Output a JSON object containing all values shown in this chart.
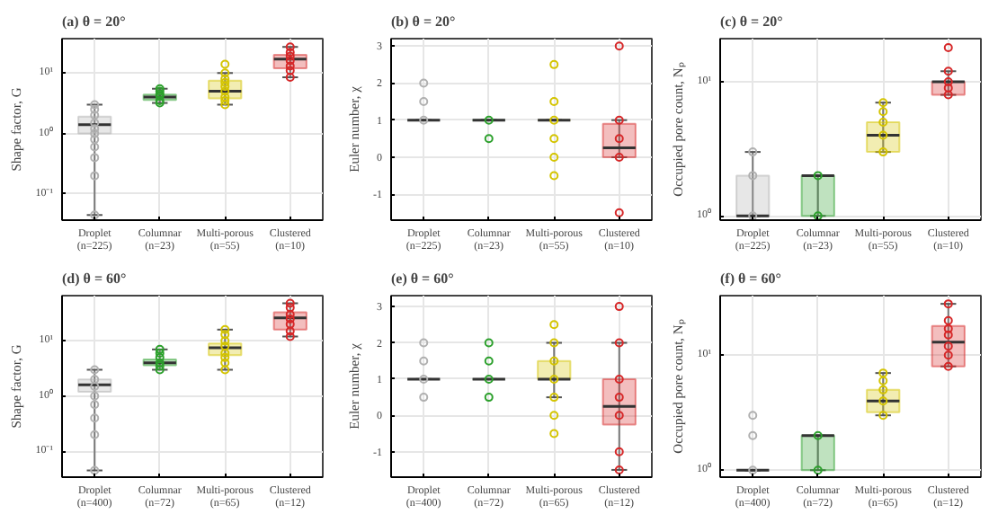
{
  "chart_data": [
    {
      "type": "box",
      "title": "(a) θ = 20°",
      "ylabel": "Shape factor, G",
      "log": true,
      "grid": true,
      "ylim": [
        0.037,
        37
      ],
      "yticks": [
        {
          "value": 0.1,
          "label": "10⁻¹"
        },
        {
          "value": 1,
          "label": "10⁰"
        },
        {
          "value": 10,
          "label": "10¹"
        }
      ],
      "categories": [
        "Droplet\n(n=225)",
        "Columnar\n(n=23)",
        "Multi-porous\n(n=55)",
        "Clustered\n(n=10)"
      ],
      "colors": [
        "#b0b0b0",
        "#2ca02c",
        "#d4c400",
        "#d62728"
      ],
      "boxes": [
        {
          "low": 0.045,
          "q1": 1.0,
          "median": 1.4,
          "q3": 1.9,
          "high": 3.0
        },
        {
          "low": 3.2,
          "q1": 3.6,
          "median": 4.0,
          "q3": 4.4,
          "high": 5.5
        },
        {
          "low": 3.0,
          "q1": 3.8,
          "median": 5.0,
          "q3": 7.5,
          "high": 10
        },
        {
          "low": 8.5,
          "q1": 12,
          "median": 17,
          "q3": 20,
          "high": 27
        }
      ],
      "series": [
        {
          "type": "scatter",
          "color": "#b0b0b0",
          "x": [
            "Droplet\n(n=225)",
            "Droplet\n(n=225)",
            "Droplet\n(n=225)",
            "Droplet\n(n=225)",
            "Droplet\n(n=225)",
            "Droplet\n(n=225)",
            "Droplet\n(n=225)",
            "Droplet\n(n=225)",
            "Droplet\n(n=225)",
            "Droplet\n(n=225)",
            "Droplet\n(n=225)"
          ],
          "values": [
            0.045,
            0.2,
            0.4,
            0.6,
            0.8,
            1.0,
            1.2,
            1.5,
            2.0,
            2.5,
            3.0
          ]
        },
        {
          "type": "scatter",
          "color": "#2ca02c",
          "x": [
            "Columnar\n(n=23)",
            "Columnar\n(n=23)",
            "Columnar\n(n=23)",
            "Columnar\n(n=23)",
            "Columnar\n(n=23)",
            "Columnar\n(n=23)"
          ],
          "values": [
            3.2,
            3.5,
            4.2,
            4.5,
            5.0,
            5.5
          ]
        },
        {
          "type": "scatter",
          "color": "#d4c400",
          "x": [
            "Multi-porous\n(n=55)",
            "Multi-porous\n(n=55)",
            "Multi-porous\n(n=55)",
            "Multi-porous\n(n=55)",
            "Multi-porous\n(n=55)",
            "Multi-porous\n(n=55)",
            "Multi-porous\n(n=55)",
            "Multi-porous\n(n=55)",
            "Multi-porous\n(n=55)"
          ],
          "values": [
            3.0,
            3.5,
            4.0,
            5.0,
            6.0,
            7.0,
            8.0,
            10,
            14
          ]
        },
        {
          "type": "scatter",
          "color": "#d62728",
          "x": [
            "Clustered\n(n=10)",
            "Clustered\n(n=10)",
            "Clustered\n(n=10)",
            "Clustered\n(n=10)",
            "Clustered\n(n=10)",
            "Clustered\n(n=10)",
            "Clustered\n(n=10)"
          ],
          "values": [
            8.5,
            11,
            13,
            16,
            19,
            22,
            27
          ]
        }
      ]
    },
    {
      "type": "box",
      "title": "(b) θ = 20°",
      "ylabel": "Euler number, χ",
      "grid": true,
      "ylim": [
        -1.7,
        3.2
      ],
      "yticks": [
        -1,
        0,
        1,
        2,
        3
      ],
      "categories": [
        "Droplet\n(n=225)",
        "Columnar\n(n=23)",
        "Multi-porous\n(n=55)",
        "Clustered\n(n=10)"
      ],
      "colors": [
        "#b0b0b0",
        "#2ca02c",
        "#d4c400",
        "#d62728"
      ],
      "boxes": [
        {
          "low": 1,
          "q1": 1,
          "median": 1,
          "q3": 1,
          "high": 1
        },
        {
          "low": 1,
          "q1": 1,
          "median": 1,
          "q3": 1,
          "high": 1
        },
        {
          "low": 1,
          "q1": 1,
          "median": 1,
          "q3": 1,
          "high": 1
        },
        {
          "low": 0,
          "q1": 0,
          "median": 0.25,
          "q3": 0.9,
          "high": 1
        }
      ],
      "series": [
        {
          "type": "scatter",
          "color": "#b0b0b0",
          "x": [
            "Droplet\n(n=225)",
            "Droplet\n(n=225)",
            "Droplet\n(n=225)"
          ],
          "values": [
            1,
            1.5,
            2
          ]
        },
        {
          "type": "scatter",
          "color": "#2ca02c",
          "x": [
            "Columnar\n(n=23)",
            "Columnar\n(n=23)"
          ],
          "values": [
            0.5,
            1
          ]
        },
        {
          "type": "scatter",
          "color": "#d4c400",
          "x": [
            "Multi-porous\n(n=55)",
            "Multi-porous\n(n=55)",
            "Multi-porous\n(n=55)",
            "Multi-porous\n(n=55)",
            "Multi-porous\n(n=55)",
            "Multi-porous\n(n=55)"
          ],
          "values": [
            -0.5,
            0,
            0.5,
            1,
            1.5,
            2.5
          ]
        },
        {
          "type": "scatter",
          "color": "#d62728",
          "x": [
            "Clustered\n(n=10)",
            "Clustered\n(n=10)",
            "Clustered\n(n=10)",
            "Clustered\n(n=10)",
            "Clustered\n(n=10)"
          ],
          "values": [
            -1.5,
            0,
            0.5,
            1,
            3
          ]
        }
      ]
    },
    {
      "type": "box",
      "title": "(c) θ = 20°",
      "ylabel": "Occupied pore count, Nₚ",
      "log": true,
      "grid": true,
      "ylim": [
        0.93,
        21
      ],
      "yticks": [
        {
          "value": 1,
          "label": "10⁰"
        },
        {
          "value": 10,
          "label": "10¹"
        }
      ],
      "categories": [
        "Droplet\n(n=225)",
        "Columnar\n(n=23)",
        "Multi-porous\n(n=55)",
        "Clustered\n(n=10)"
      ],
      "colors": [
        "#b0b0b0",
        "#2ca02c",
        "#d4c400",
        "#d62728"
      ],
      "boxes": [
        {
          "low": 1,
          "q1": 1,
          "median": 1,
          "q3": 2,
          "high": 3
        },
        {
          "low": 1,
          "q1": 1,
          "median": 2,
          "q3": 2,
          "high": 2
        },
        {
          "low": 3,
          "q1": 3,
          "median": 4,
          "q3": 5,
          "high": 7
        },
        {
          "low": 8,
          "q1": 8,
          "median": 10,
          "q3": 10,
          "high": 12
        }
      ],
      "series": [
        {
          "type": "scatter",
          "color": "#b0b0b0",
          "x": [
            "Droplet\n(n=225)",
            "Droplet\n(n=225)",
            "Droplet\n(n=225)"
          ],
          "values": [
            1,
            2,
            3
          ]
        },
        {
          "type": "scatter",
          "color": "#2ca02c",
          "x": [
            "Columnar\n(n=23)",
            "Columnar\n(n=23)"
          ],
          "values": [
            1,
            2
          ]
        },
        {
          "type": "scatter",
          "color": "#d4c400",
          "x": [
            "Multi-porous\n(n=55)",
            "Multi-porous\n(n=55)",
            "Multi-porous\n(n=55)",
            "Multi-porous\n(n=55)",
            "Multi-porous\n(n=55)"
          ],
          "values": [
            3,
            4,
            5,
            6,
            7
          ]
        },
        {
          "type": "scatter",
          "color": "#d62728",
          "x": [
            "Clustered\n(n=10)",
            "Clustered\n(n=10)",
            "Clustered\n(n=10)",
            "Clustered\n(n=10)",
            "Clustered\n(n=10)"
          ],
          "values": [
            8,
            9,
            10,
            12,
            18
          ]
        }
      ]
    },
    {
      "type": "box",
      "title": "(d) θ = 60°",
      "ylabel": "Shape factor, G",
      "log": true,
      "grid": true,
      "ylim": [
        0.034,
        66
      ],
      "yticks": [
        {
          "value": 0.1,
          "label": "10⁻¹"
        },
        {
          "value": 1,
          "label": "10⁰"
        },
        {
          "value": 10,
          "label": "10¹"
        }
      ],
      "categories": [
        "Droplet\n(n=400)",
        "Columnar\n(n=72)",
        "Multi-porous\n(n=65)",
        "Clustered\n(n=12)"
      ],
      "colors": [
        "#b0b0b0",
        "#2ca02c",
        "#d4c400",
        "#d62728"
      ],
      "boxes": [
        {
          "low": 0.045,
          "q1": 1.2,
          "median": 1.6,
          "q3": 2.0,
          "high": 3.0
        },
        {
          "low": 3.0,
          "q1": 3.6,
          "median": 4.0,
          "q3": 4.6,
          "high": 7.0
        },
        {
          "low": 3.0,
          "q1": 5.5,
          "median": 7.5,
          "q3": 9.0,
          "high": 16
        },
        {
          "low": 12,
          "q1": 16,
          "median": 26,
          "q3": 33,
          "high": 48
        }
      ],
      "series": [
        {
          "type": "scatter",
          "color": "#b0b0b0",
          "x": [
            "Droplet\n(n=400)",
            "Droplet\n(n=400)",
            "Droplet\n(n=400)",
            "Droplet\n(n=400)",
            "Droplet\n(n=400)",
            "Droplet\n(n=400)",
            "Droplet\n(n=400)",
            "Droplet\n(n=400)"
          ],
          "values": [
            0.045,
            0.2,
            0.4,
            0.7,
            1.0,
            1.5,
            2.0,
            3.0
          ]
        },
        {
          "type": "scatter",
          "color": "#2ca02c",
          "x": [
            "Columnar\n(n=72)",
            "Columnar\n(n=72)",
            "Columnar\n(n=72)",
            "Columnar\n(n=72)",
            "Columnar\n(n=72)",
            "Columnar\n(n=72)"
          ],
          "values": [
            3.0,
            3.5,
            4.0,
            5.0,
            6.0,
            7.0
          ]
        },
        {
          "type": "scatter",
          "color": "#d4c400",
          "x": [
            "Multi-porous\n(n=65)",
            "Multi-porous\n(n=65)",
            "Multi-porous\n(n=65)",
            "Multi-porous\n(n=65)",
            "Multi-porous\n(n=65)",
            "Multi-porous\n(n=65)",
            "Multi-porous\n(n=65)",
            "Multi-porous\n(n=65)"
          ],
          "values": [
            3.0,
            4.0,
            5.0,
            6.0,
            8.0,
            10,
            13,
            16
          ]
        },
        {
          "type": "scatter",
          "color": "#d62728",
          "x": [
            "Clustered\n(n=12)",
            "Clustered\n(n=12)",
            "Clustered\n(n=12)",
            "Clustered\n(n=12)",
            "Clustered\n(n=12)",
            "Clustered\n(n=12)",
            "Clustered\n(n=12)"
          ],
          "values": [
            12,
            15,
            20,
            25,
            30,
            40,
            48
          ]
        }
      ]
    },
    {
      "type": "box",
      "title": "(e) θ = 60°",
      "ylabel": "Euler number, χ",
      "grid": true,
      "ylim": [
        -1.7,
        3.3
      ],
      "yticks": [
        -1,
        0,
        1,
        2,
        3
      ],
      "categories": [
        "Droplet\n(n=400)",
        "Columnar\n(n=72)",
        "Multi-porous\n(n=65)",
        "Clustered\n(n=12)"
      ],
      "colors": [
        "#b0b0b0",
        "#2ca02c",
        "#d4c400",
        "#d62728"
      ],
      "boxes": [
        {
          "low": 1,
          "q1": 1,
          "median": 1,
          "q3": 1,
          "high": 1
        },
        {
          "low": 1,
          "q1": 1,
          "median": 1,
          "q3": 1,
          "high": 1
        },
        {
          "low": 0.5,
          "q1": 1,
          "median": 1,
          "q3": 1.5,
          "high": 2
        },
        {
          "low": -1.5,
          "q1": -0.25,
          "median": 0.25,
          "q3": 1.0,
          "high": 2
        }
      ],
      "series": [
        {
          "type": "scatter",
          "color": "#b0b0b0",
          "x": [
            "Droplet\n(n=400)",
            "Droplet\n(n=400)",
            "Droplet\n(n=400)",
            "Droplet\n(n=400)"
          ],
          "values": [
            0.5,
            1,
            1.5,
            2
          ]
        },
        {
          "type": "scatter",
          "color": "#2ca02c",
          "x": [
            "Columnar\n(n=72)",
            "Columnar\n(n=72)",
            "Columnar\n(n=72)",
            "Columnar\n(n=72)"
          ],
          "values": [
            0.5,
            1,
            1.5,
            2
          ]
        },
        {
          "type": "scatter",
          "color": "#d4c400",
          "x": [
            "Multi-porous\n(n=65)",
            "Multi-porous\n(n=65)",
            "Multi-porous\n(n=65)",
            "Multi-porous\n(n=65)",
            "Multi-porous\n(n=65)",
            "Multi-porous\n(n=65)",
            "Multi-porous\n(n=65)"
          ],
          "values": [
            -0.5,
            0,
            0.5,
            1,
            1.5,
            2,
            2.5
          ]
        },
        {
          "type": "scatter",
          "color": "#d62728",
          "x": [
            "Clustered\n(n=12)",
            "Clustered\n(n=12)",
            "Clustered\n(n=12)",
            "Clustered\n(n=12)",
            "Clustered\n(n=12)",
            "Clustered\n(n=12)",
            "Clustered\n(n=12)"
          ],
          "values": [
            -1.5,
            -1,
            0,
            0.5,
            1,
            2,
            3
          ]
        }
      ]
    },
    {
      "type": "box",
      "title": "(f) θ = 60°",
      "ylabel": "Occupied pore count, Nₚ",
      "log": true,
      "grid": true,
      "ylim": [
        0.87,
        33
      ],
      "yticks": [
        {
          "value": 1,
          "label": "10⁰"
        },
        {
          "value": 10,
          "label": "10¹"
        }
      ],
      "categories": [
        "Droplet\n(n=400)",
        "Columnar\n(n=72)",
        "Multi-porous\n(n=65)",
        "Clustered\n(n=12)"
      ],
      "colors": [
        "#b0b0b0",
        "#2ca02c",
        "#d4c400",
        "#d62728"
      ],
      "boxes": [
        {
          "low": 1,
          "q1": 1,
          "median": 1,
          "q3": 1,
          "high": 1
        },
        {
          "low": 1,
          "q1": 1,
          "median": 2,
          "q3": 2,
          "high": 2
        },
        {
          "low": 3,
          "q1": 3.2,
          "median": 4,
          "q3": 5,
          "high": 7
        },
        {
          "low": 8,
          "q1": 8,
          "median": 13,
          "q3": 18,
          "high": 28
        }
      ],
      "series": [
        {
          "type": "scatter",
          "color": "#b0b0b0",
          "x": [
            "Droplet\n(n=400)",
            "Droplet\n(n=400)",
            "Droplet\n(n=400)"
          ],
          "values": [
            1,
            2,
            3
          ]
        },
        {
          "type": "scatter",
          "color": "#2ca02c",
          "x": [
            "Columnar\n(n=72)",
            "Columnar\n(n=72)"
          ],
          "values": [
            1,
            2
          ]
        },
        {
          "type": "scatter",
          "color": "#d4c400",
          "x": [
            "Multi-porous\n(n=65)",
            "Multi-porous\n(n=65)",
            "Multi-porous\n(n=65)",
            "Multi-porous\n(n=65)",
            "Multi-porous\n(n=65)"
          ],
          "values": [
            3,
            4,
            5,
            6,
            7
          ]
        },
        {
          "type": "scatter",
          "color": "#d62728",
          "x": [
            "Clustered\n(n=12)",
            "Clustered\n(n=12)",
            "Clustered\n(n=12)",
            "Clustered\n(n=12)",
            "Clustered\n(n=12)",
            "Clustered\n(n=12)",
            "Clustered\n(n=12)"
          ],
          "values": [
            8,
            10,
            12,
            15,
            17,
            20,
            28
          ]
        }
      ]
    }
  ]
}
